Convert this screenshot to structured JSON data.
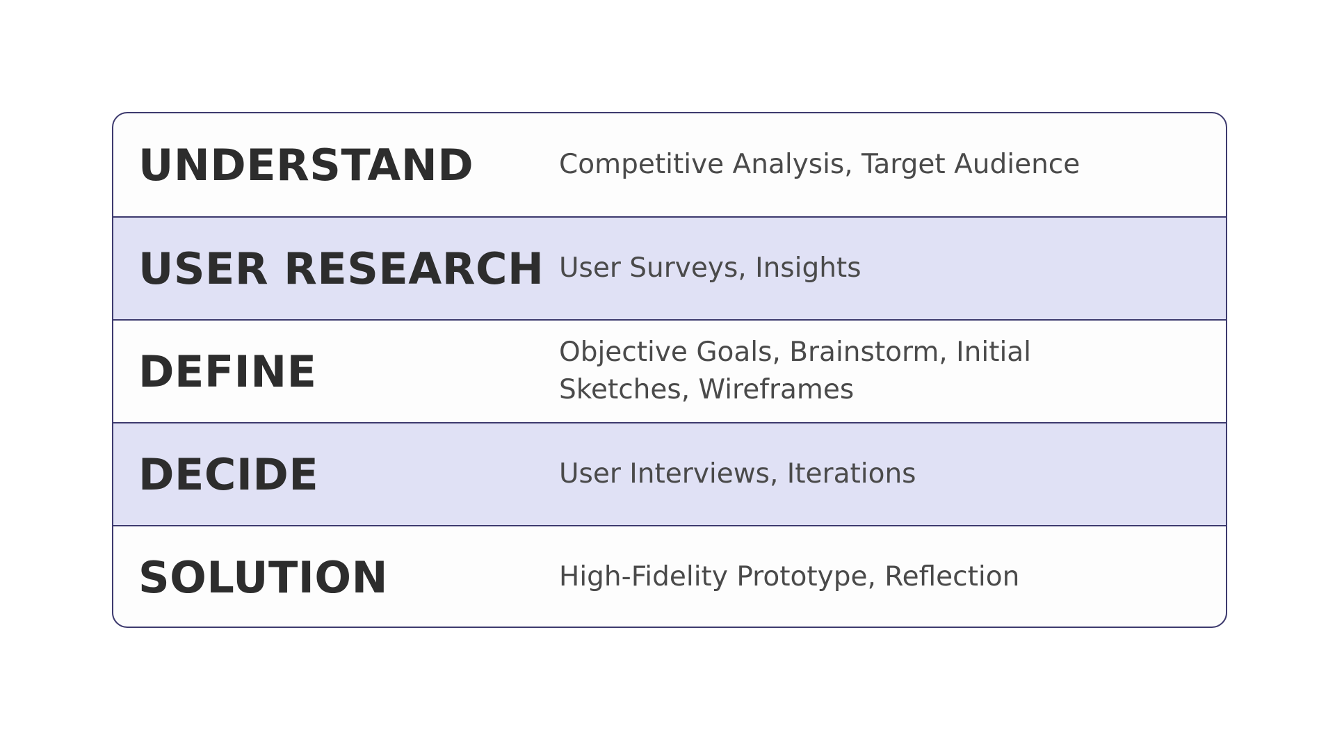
{
  "process": {
    "rows": [
      {
        "stage": "UNDERSTAND",
        "activities": "Competitive Analysis, Target Audience",
        "shaded": false
      },
      {
        "stage": "USER RESEARCH",
        "activities": "User Surveys, Insights",
        "shaded": true
      },
      {
        "stage": "DEFINE",
        "activities": "Objective Goals, Brainstorm, Initial Sketches, Wireframes",
        "shaded": false
      },
      {
        "stage": "DECIDE",
        "activities": "User Interviews, Iterations",
        "shaded": true
      },
      {
        "stage": "SOLUTION",
        "activities": "High-Fidelity Prototype, Reflection",
        "shaded": false
      }
    ]
  },
  "colors": {
    "border": "#3d3a6e",
    "shaded_row": "#e0e1f5",
    "stage_text": "#2d2d2d",
    "activity_text": "#4a4a4a"
  }
}
